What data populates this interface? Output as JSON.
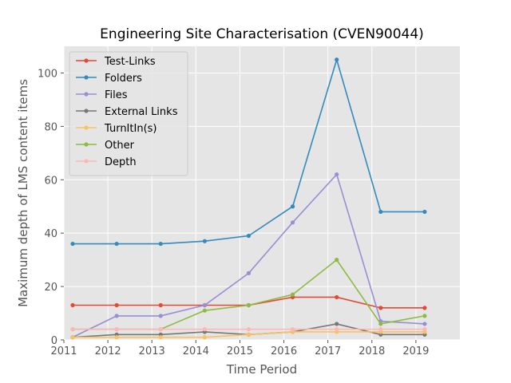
{
  "chart_data": {
    "type": "line",
    "title": "Engineering Site Characterisation (CVEN90044)",
    "xlabel": "Time Period",
    "ylabel": "Maximum depth of LMS content items",
    "xlim": [
      2011,
      2020
    ],
    "ylim": [
      0,
      110
    ],
    "xticks": [
      "2011",
      "2012",
      "2013",
      "2014",
      "2015",
      "2016",
      "2017",
      "2018",
      "2019"
    ],
    "yticks": [
      "0",
      "20",
      "40",
      "60",
      "80",
      "100"
    ],
    "grid": true,
    "legend_position": "top-left",
    "x": [
      2011.2,
      2012.2,
      2013.2,
      2014.2,
      2015.2,
      2016.2,
      2017.2,
      2018.2,
      2019.2
    ],
    "series": [
      {
        "name": "Test-Links",
        "color": "#e24a33",
        "values": [
          13,
          13,
          13,
          13,
          13,
          16,
          16,
          12,
          12
        ]
      },
      {
        "name": "Folders",
        "color": "#348abd",
        "values": [
          36,
          36,
          36,
          37,
          39,
          50,
          105,
          48,
          48
        ]
      },
      {
        "name": "Files",
        "color": "#988ed5",
        "values": [
          1,
          9,
          9,
          13,
          25,
          44,
          62,
          7,
          6
        ]
      },
      {
        "name": "External Links",
        "color": "#777777",
        "values": [
          1,
          2,
          2,
          3,
          2,
          3,
          6,
          2,
          2
        ]
      },
      {
        "name": "TurnItIn(s)",
        "color": "#fbc15e",
        "values": [
          1,
          1,
          1,
          1,
          2,
          3,
          3,
          3,
          3
        ]
      },
      {
        "name": "Other",
        "color": "#8eba42",
        "values": [
          4,
          4,
          4,
          11,
          13,
          17,
          30,
          6,
          9
        ]
      },
      {
        "name": "Depth",
        "color": "#ffb5b8",
        "values": [
          4,
          4,
          4,
          4,
          4,
          4,
          4,
          4,
          4
        ]
      }
    ]
  }
}
